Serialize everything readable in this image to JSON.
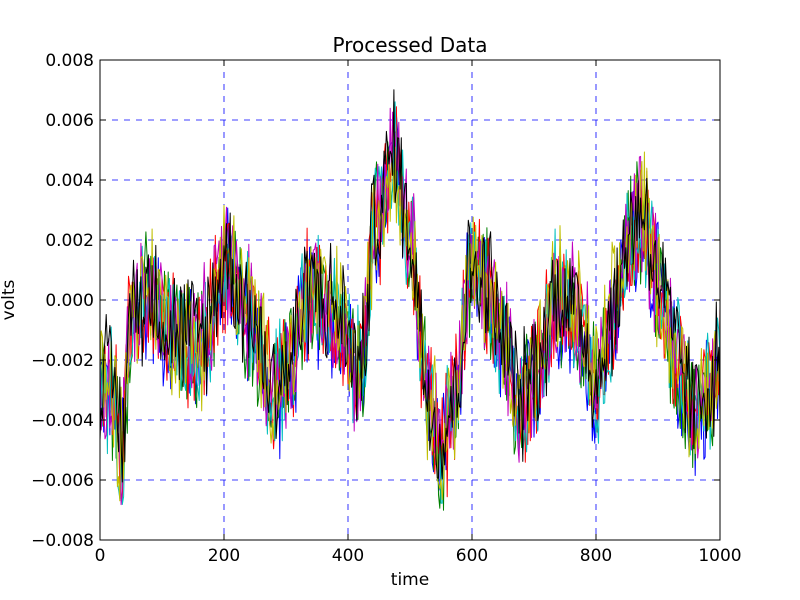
{
  "chart_data": {
    "type": "line",
    "title": "Processed Data",
    "xlabel": "time",
    "ylabel": "volts",
    "xlim": [
      0,
      1000
    ],
    "ylim": [
      -0.008,
      0.008
    ],
    "xticks": [
      0,
      200,
      400,
      600,
      800,
      1000
    ],
    "xtick_labels": [
      "0",
      "200",
      "400",
      "600",
      "800",
      "1000"
    ],
    "yticks": [
      -0.008,
      -0.006,
      -0.004,
      -0.002,
      0.0,
      0.002,
      0.004,
      0.006,
      0.008
    ],
    "ytick_labels": [
      "−0.008",
      "−0.006",
      "−0.004",
      "−0.002",
      "0.000",
      "0.002",
      "0.004",
      "0.006",
      "0.008"
    ],
    "grid": true,
    "legend": "none",
    "series_colors": [
      "#0000ff",
      "#008000",
      "#ff0000",
      "#00bfbf",
      "#bf00bf",
      "#bfbf00",
      "#000000"
    ],
    "mean_curve": {
      "x": [
        0,
        20,
        35,
        50,
        80,
        120,
        160,
        205,
        240,
        280,
        300,
        340,
        380,
        420,
        445,
        475,
        500,
        530,
        550,
        570,
        600,
        625,
        650,
        680,
        700,
        740,
        770,
        800,
        830,
        860,
        875,
        900,
        930,
        960,
        980,
        1000
      ],
      "y": [
        -0.0025,
        -0.003,
        -0.0048,
        -0.0005,
        0.0002,
        -0.0012,
        -0.0015,
        0.0012,
        -0.0005,
        -0.003,
        -0.0025,
        0.0003,
        -0.0005,
        -0.0025,
        0.0025,
        0.0048,
        0.002,
        -0.0032,
        -0.005,
        -0.0035,
        0.0008,
        0.0003,
        -0.0015,
        -0.0035,
        -0.0025,
        0.0002,
        -0.0006,
        -0.0028,
        -0.0005,
        0.0025,
        0.003,
        0.0005,
        -0.002,
        -0.0038,
        -0.003,
        -0.0022
      ]
    },
    "noise_amplitude": 0.0022
  }
}
